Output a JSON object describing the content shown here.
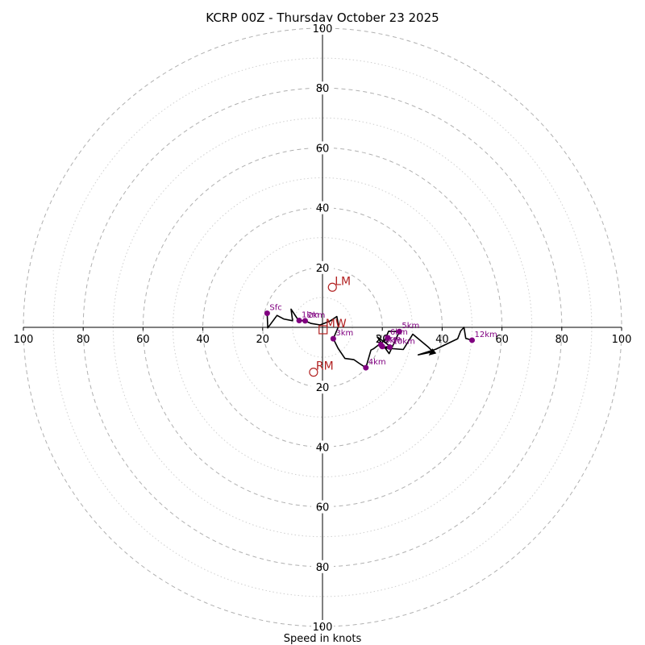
{
  "chart_data": {
    "type": "hodograph",
    "title": "KCRP 00Z - Thursday October 23 2025",
    "xlabel": "Speed in knots",
    "units": "knots",
    "range": [
      -100,
      100
    ],
    "major_rings": [
      20,
      40,
      60,
      80,
      100
    ],
    "minor_rings": [
      10,
      30,
      50,
      70,
      90
    ],
    "x_ticks": [
      -100,
      -80,
      -60,
      -40,
      -20,
      20,
      40,
      60,
      80,
      100
    ],
    "x_tick_labels": [
      "100",
      "80",
      "60",
      "40",
      "20",
      "20",
      "40",
      "60",
      "80",
      "100"
    ],
    "y_ticks": [
      100,
      80,
      60,
      40,
      20,
      -20,
      -40,
      -60,
      -80,
      -100
    ],
    "y_tick_labels": [
      "100",
      "80",
      "60",
      "40",
      "20",
      "20",
      "40",
      "60",
      "80",
      "100"
    ],
    "center_tick_label": "20",
    "hodograph_uv": [
      [
        -18.5,
        4.7
      ],
      [
        -18.3,
        -0.2
      ],
      [
        -15.2,
        4.0
      ],
      [
        -13.0,
        2.8
      ],
      [
        -10.0,
        2.2
      ],
      [
        -10.5,
        6.1
      ],
      [
        -8.0,
        2.3
      ],
      [
        -6.0,
        2.2
      ],
      [
        -3.8,
        1.3
      ],
      [
        -0.8,
        0.8
      ],
      [
        2.5,
        2.1
      ],
      [
        4.8,
        3.6
      ],
      [
        5.4,
        0.4
      ],
      [
        3.6,
        -3.8
      ],
      [
        5.2,
        -7.0
      ],
      [
        7.5,
        -10.4
      ],
      [
        10.5,
        -10.8
      ],
      [
        12.2,
        -12.0
      ],
      [
        14.5,
        -13.5
      ],
      [
        16.2,
        -7.6
      ],
      [
        17.0,
        -7.2
      ],
      [
        20.8,
        -4.3
      ],
      [
        22.1,
        -1.3
      ],
      [
        25.7,
        -1.4
      ],
      [
        22.3,
        -8.8
      ],
      [
        18.3,
        -3.2
      ],
      [
        22.7,
        -6.4
      ],
      [
        19.3,
        -6.8
      ],
      [
        27.0,
        -7.4
      ],
      [
        30.2,
        -2.3
      ],
      [
        35.5,
        -6.7
      ],
      [
        37.0,
        -8.2
      ],
      [
        32.0,
        -9.2
      ],
      [
        37.9,
        -7.3
      ],
      [
        45.2,
        -3.8
      ],
      [
        46.2,
        -1.2
      ],
      [
        47.3,
        0.0
      ],
      [
        47.9,
        -3.7
      ],
      [
        50.0,
        -4.3
      ]
    ],
    "end_arrow": {
      "tail": [
        37.0,
        -8.2
      ],
      "tip": [
        35.5,
        -9.4
      ]
    },
    "height_points": [
      {
        "label": "Sfc",
        "u": -18.5,
        "v": 4.7
      },
      {
        "label": "1km",
        "u": -7.8,
        "v": 2.3
      },
      {
        "label": "2km",
        "u": -5.8,
        "v": 2.2
      },
      {
        "label": "3km",
        "u": 3.6,
        "v": -3.8
      },
      {
        "label": "4km",
        "u": 14.5,
        "v": -13.5
      },
      {
        "label": "5km",
        "u": 25.7,
        "v": -1.4
      },
      {
        "label": "6km",
        "u": 21.8,
        "v": -3.5
      },
      {
        "label": "7km",
        "u": 19.5,
        "v": -5.8
      },
      {
        "label": "9km",
        "u": 20.0,
        "v": -6.4
      },
      {
        "label": "10km",
        "u": 22.5,
        "v": -6.6
      },
      {
        "label": "12km",
        "u": 50.0,
        "v": -4.3
      }
    ],
    "storm_motions": [
      {
        "label": "LM",
        "u": 3.3,
        "v": 13.4,
        "marker": "circle"
      },
      {
        "label": "RM",
        "u": -3.0,
        "v": -15.0,
        "marker": "circle"
      },
      {
        "label": "MW",
        "u": 0.2,
        "v": -0.8,
        "marker": "square"
      }
    ],
    "colors": {
      "height_points": "#800080",
      "storm_motion": "#b22222",
      "trace": "#000000",
      "rings": "#b0b0b0"
    }
  }
}
